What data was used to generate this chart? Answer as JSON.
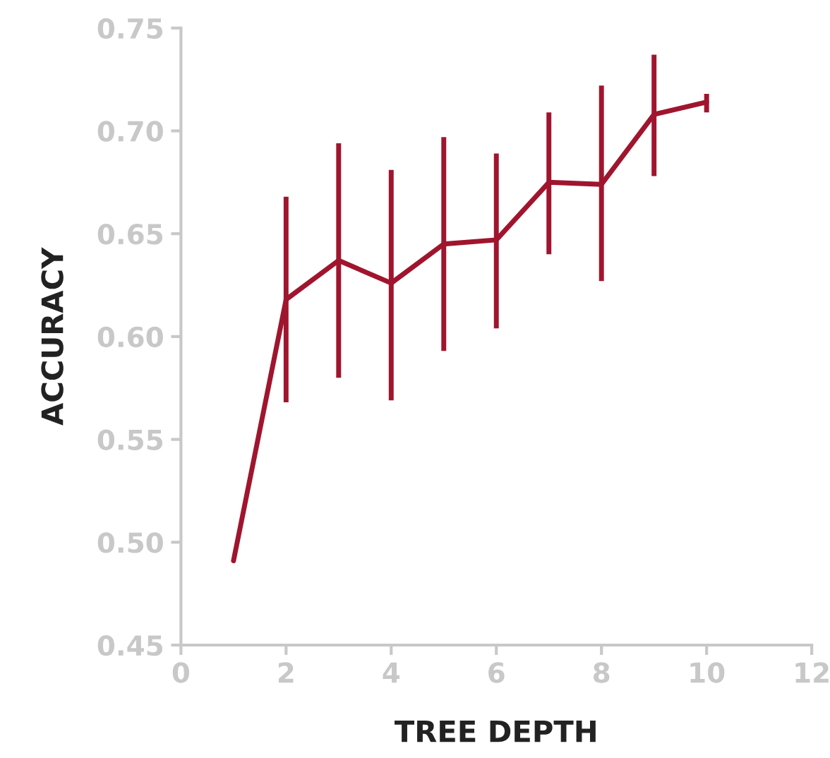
{
  "chart_data": {
    "type": "line",
    "xlabel": "TREE DEPTH",
    "ylabel": "ACCURACY",
    "x": [
      1,
      2,
      3,
      4,
      5,
      6,
      7,
      8,
      9,
      10
    ],
    "series": [
      {
        "color": "#a0152e",
        "values": [
          0.491,
          0.618,
          0.637,
          0.626,
          0.645,
          0.647,
          0.675,
          0.674,
          0.708,
          0.714
        ],
        "errors": [
          null,
          [
            0.568,
            0.668
          ],
          [
            0.58,
            0.694
          ],
          [
            0.569,
            0.681
          ],
          [
            0.593,
            0.697
          ],
          [
            0.604,
            0.689
          ],
          [
            0.64,
            0.709
          ],
          [
            0.627,
            0.722
          ],
          [
            0.678,
            0.737
          ],
          [
            0.709,
            0.718
          ]
        ]
      }
    ],
    "xlim": [
      0,
      12
    ],
    "xticks": [
      0,
      2,
      4,
      6,
      8,
      10,
      12
    ],
    "ylim": [
      0.45,
      0.75
    ],
    "yticks": [
      {
        "value": 0.45,
        "label": "0.45"
      },
      {
        "value": 0.5,
        "label": "0.50"
      },
      {
        "value": 0.55,
        "label": "0.55"
      },
      {
        "value": 0.6,
        "label": "0.60"
      },
      {
        "value": 0.65,
        "label": "0.65"
      },
      {
        "value": 0.7,
        "label": "0.70"
      },
      {
        "value": 0.75,
        "label": "0.75"
      }
    ],
    "grid": false,
    "legend": false,
    "marker": "none",
    "line_style": "solid"
  }
}
